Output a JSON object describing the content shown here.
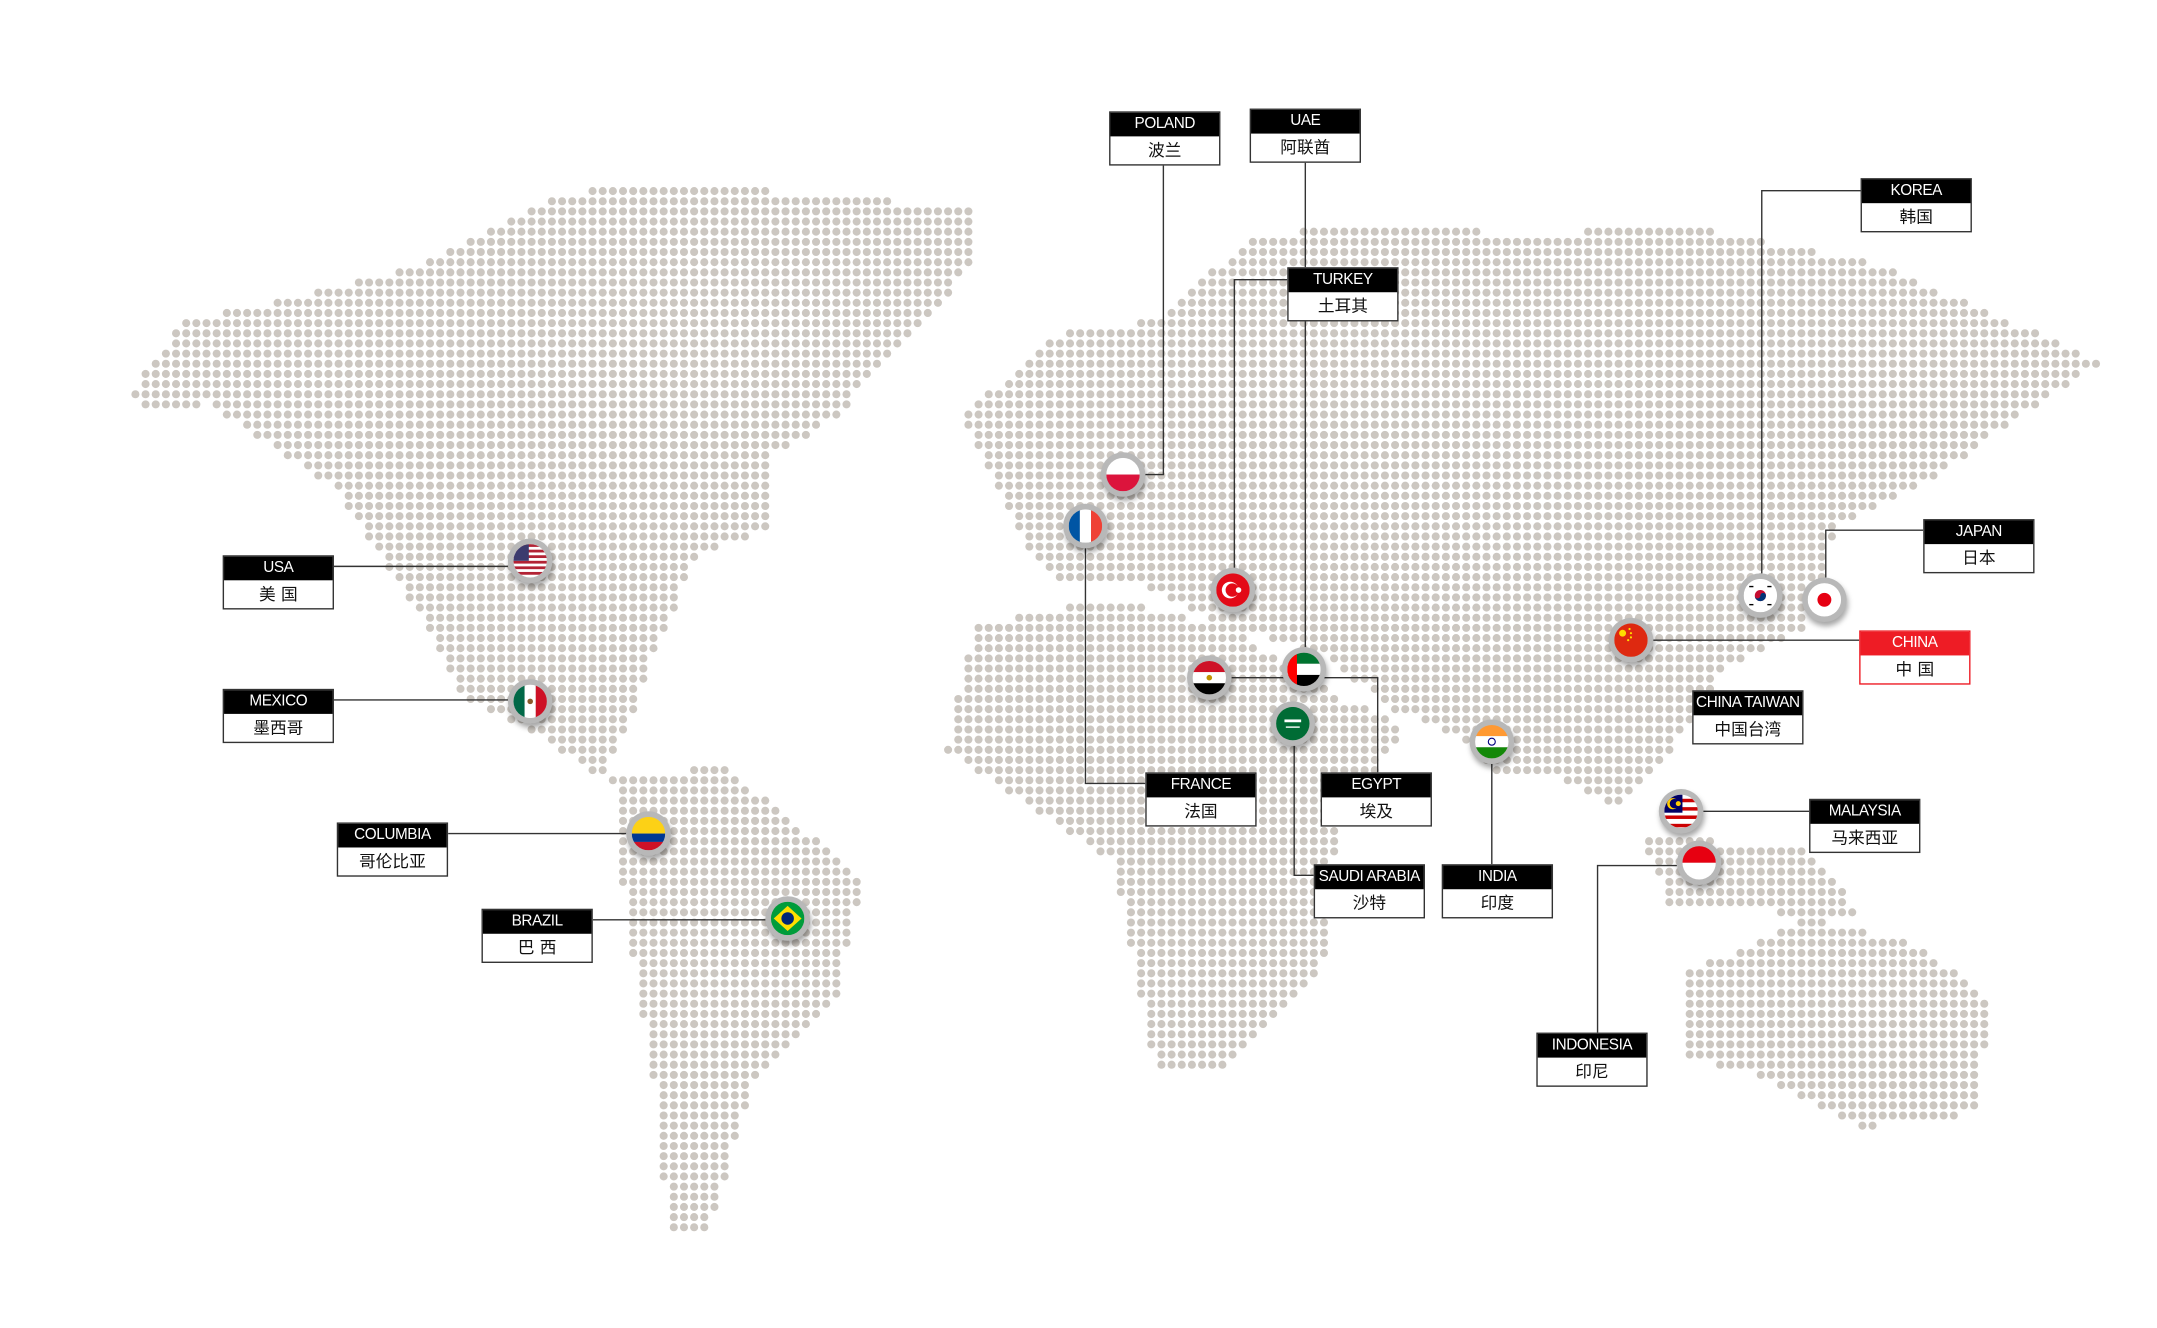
{
  "colors": {
    "dot": "#ccc7c1",
    "line": "#333333",
    "label_header": "#000000",
    "highlight": "#ee1c25"
  },
  "locations": [
    {
      "id": "poland",
      "en": "POLAND",
      "zh": "波兰",
      "flag": "poland-flag-icon"
    },
    {
      "id": "uae",
      "en": "UAE",
      "zh": "阿联酋",
      "flag": "uae-flag-icon"
    },
    {
      "id": "turkey",
      "en": "TURKEY",
      "zh": "土耳其",
      "flag": "turkey-flag-icon"
    },
    {
      "id": "korea",
      "en": "KOREA",
      "zh": "韩国",
      "flag": "korea-flag-icon"
    },
    {
      "id": "japan",
      "en": "JAPAN",
      "zh": "日本",
      "flag": "japan-flag-icon"
    },
    {
      "id": "china",
      "en": "CHINA",
      "zh": "中 国",
      "flag": "china-flag-icon",
      "highlight": true
    },
    {
      "id": "china-taiwan",
      "en": "CHINA TAIWAN",
      "zh": "中国台湾"
    },
    {
      "id": "malaysia",
      "en": "MALAYSIA",
      "zh": "马来西亚",
      "flag": "malaysia-flag-icon"
    },
    {
      "id": "indonesia",
      "en": "INDONESIA",
      "zh": "印尼",
      "flag": "indonesia-flag-icon"
    },
    {
      "id": "india",
      "en": "INDIA",
      "zh": "印度",
      "flag": "india-flag-icon"
    },
    {
      "id": "saudi-arabia",
      "en": "SAUDI ARABIA",
      "zh": "沙特",
      "flag": "saudi-arabia-flag-icon"
    },
    {
      "id": "egypt",
      "en": "EGYPT",
      "zh": "埃及",
      "flag": "egypt-flag-icon"
    },
    {
      "id": "france",
      "en": "FRANCE",
      "zh": "法国",
      "flag": "france-flag-icon"
    },
    {
      "id": "usa",
      "en": "USA",
      "zh": "美 国",
      "flag": "usa-flag-icon"
    },
    {
      "id": "mexico",
      "en": "MEXICO",
      "zh": "墨西哥",
      "flag": "mexico-flag-icon"
    },
    {
      "id": "columbia",
      "en": "COLUMBIA",
      "zh": "哥伦比亚",
      "flag": "colombia-flag-icon"
    },
    {
      "id": "brazil",
      "en": "BRAZIL",
      "zh": "巴 西",
      "flag": "brazil-flag-icon"
    }
  ]
}
